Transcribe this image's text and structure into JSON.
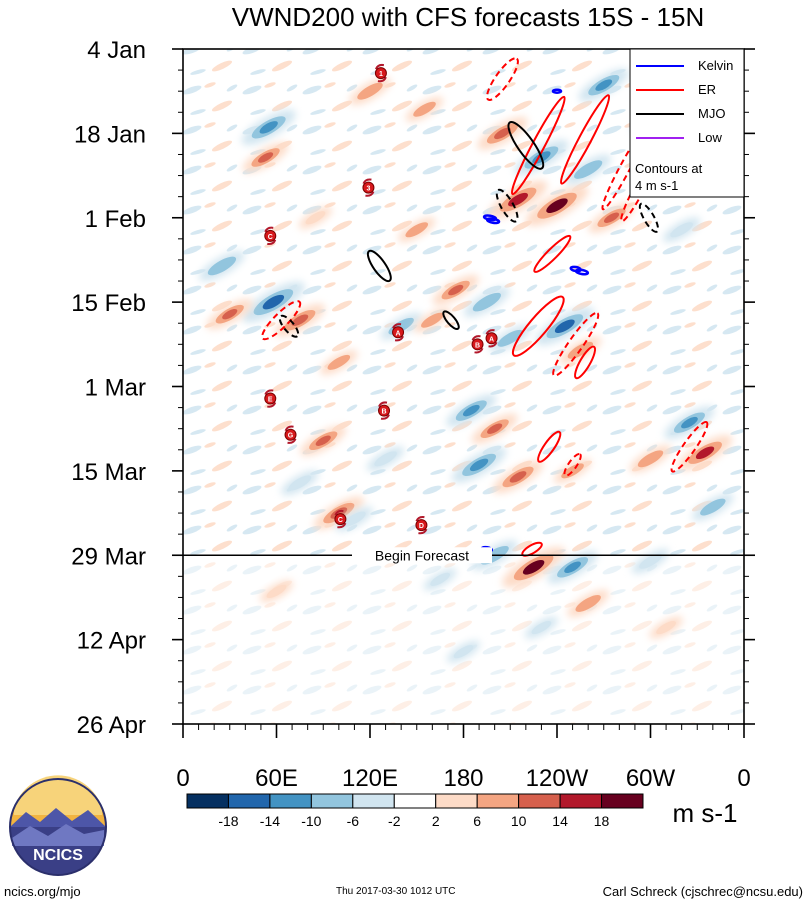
{
  "chart_data": {
    "type": "heatmap",
    "title": "VWND200 with CFS forecasts  15S - 15N",
    "xlabel": "",
    "ylabel": "",
    "x_ticks": [
      "0",
      "60E",
      "120E",
      "180",
      "120W",
      "60W",
      "0"
    ],
    "x_range_deg": [
      0,
      360
    ],
    "y_ticks": [
      "4 Jan",
      "18 Jan",
      "1 Feb",
      "15 Feb",
      "1 Mar",
      "15 Mar",
      "29 Mar",
      "12 Apr",
      "26 Apr"
    ],
    "y_range_days": [
      0,
      112
    ],
    "forecast_line_day": 84,
    "forecast_label": "Begin Forecast",
    "colorbar": {
      "unit": "m s-1",
      "labels": [
        "-18",
        "-14",
        "-10",
        "-6",
        "-2",
        "2",
        "6",
        "10",
        "14",
        "18"
      ],
      "colors": [
        "#053061",
        "#2166ac",
        "#4393c3",
        "#92c5de",
        "#d1e5f0",
        "#ffffff",
        "#fddbc7",
        "#f4a582",
        "#d6604d",
        "#b2182b",
        "#67001f"
      ]
    },
    "legend": {
      "position": "top-right",
      "entries": [
        {
          "name": "Kelvin",
          "color": "#0000ff"
        },
        {
          "name": "ER",
          "color": "#ff0000"
        },
        {
          "name": "MJO",
          "color": "#000000"
        },
        {
          "name": "Low",
          "color": "#a020f0"
        }
      ],
      "note_line1": "Contours at",
      "note_line2": "4 m s-1"
    },
    "anomalies": [
      {
        "lon": 120,
        "day": 7,
        "v": 8
      },
      {
        "lon": 55,
        "day": 13,
        "v": -14
      },
      {
        "lon": 53,
        "day": 18,
        "v": 10
      },
      {
        "lon": 155,
        "day": 10,
        "v": 6
      },
      {
        "lon": 205,
        "day": 14,
        "v": 12
      },
      {
        "lon": 215,
        "day": 25,
        "v": 16
      },
      {
        "lon": 240,
        "day": 26,
        "v": 18
      },
      {
        "lon": 230,
        "day": 18,
        "v": -14
      },
      {
        "lon": 270,
        "day": 6,
        "v": -12
      },
      {
        "lon": 260,
        "day": 20,
        "v": -10
      },
      {
        "lon": 275,
        "day": 28,
        "v": 10
      },
      {
        "lon": 300,
        "day": 12,
        "v": -6
      },
      {
        "lon": 25,
        "day": 36,
        "v": -10
      },
      {
        "lon": 58,
        "day": 42,
        "v": -18
      },
      {
        "lon": 75,
        "day": 45,
        "v": 12
      },
      {
        "lon": 30,
        "day": 44,
        "v": 10
      },
      {
        "lon": 100,
        "day": 52,
        "v": 6
      },
      {
        "lon": 140,
        "day": 46,
        "v": -8
      },
      {
        "lon": 160,
        "day": 45,
        "v": 6
      },
      {
        "lon": 175,
        "day": 40,
        "v": 10
      },
      {
        "lon": 195,
        "day": 42,
        "v": -10
      },
      {
        "lon": 210,
        "day": 48,
        "v": -8
      },
      {
        "lon": 245,
        "day": 46,
        "v": -16
      },
      {
        "lon": 255,
        "day": 50,
        "v": 8
      },
      {
        "lon": 185,
        "day": 60,
        "v": -12
      },
      {
        "lon": 200,
        "day": 63,
        "v": 10
      },
      {
        "lon": 90,
        "day": 65,
        "v": 10
      },
      {
        "lon": 75,
        "day": 72,
        "v": -6
      },
      {
        "lon": 130,
        "day": 68,
        "v": -6
      },
      {
        "lon": 325,
        "day": 62,
        "v": -12
      },
      {
        "lon": 335,
        "day": 67,
        "v": 14
      },
      {
        "lon": 300,
        "day": 68,
        "v": 8
      },
      {
        "lon": 190,
        "day": 69,
        "v": -14
      },
      {
        "lon": 215,
        "day": 71,
        "v": 12
      },
      {
        "lon": 250,
        "day": 70,
        "v": 6
      },
      {
        "lon": 340,
        "day": 76,
        "v": -8
      },
      {
        "lon": 100,
        "day": 77,
        "v": 12
      },
      {
        "lon": 110,
        "day": 78,
        "v": -6
      },
      {
        "lon": 200,
        "day": 84,
        "v": -10
      },
      {
        "lon": 225,
        "day": 86,
        "v": 18
      },
      {
        "lon": 250,
        "day": 86,
        "v": -12
      },
      {
        "lon": 300,
        "day": 85,
        "v": -6
      },
      {
        "lon": 260,
        "day": 92,
        "v": 8
      },
      {
        "lon": 165,
        "day": 88,
        "v": -4
      },
      {
        "lon": 60,
        "day": 90,
        "v": 4
      },
      {
        "lon": 230,
        "day": 96,
        "v": -4
      },
      {
        "lon": 180,
        "day": 100,
        "v": -4
      },
      {
        "lon": 310,
        "day": 96,
        "v": 4
      },
      {
        "lon": 150,
        "day": 30,
        "v": 6
      },
      {
        "lon": 85,
        "day": 28,
        "v": 4
      },
      {
        "lon": 320,
        "day": 30,
        "v": -6
      }
    ],
    "contours": [
      {
        "wave": "ER",
        "sign": "+",
        "lon": 228,
        "day": 16,
        "ang": -62,
        "rx": 55,
        "ry": 6
      },
      {
        "wave": "ER",
        "sign": "+",
        "lon": 258,
        "day": 15,
        "ang": -62,
        "rx": 50,
        "ry": 6
      },
      {
        "wave": "ER",
        "sign": "-",
        "lon": 283,
        "day": 20,
        "ang": -62,
        "rx": 45,
        "ry": 5
      },
      {
        "wave": "ER",
        "sign": "-",
        "lon": 293,
        "day": 23,
        "ang": -62,
        "rx": 38,
        "ry": 5
      },
      {
        "wave": "ER",
        "sign": "-",
        "lon": 205,
        "day": 5,
        "ang": -55,
        "rx": 25,
        "ry": 7
      },
      {
        "wave": "ER",
        "sign": "+",
        "lon": 237,
        "day": 34,
        "ang": -45,
        "rx": 25,
        "ry": 5
      },
      {
        "wave": "ER",
        "sign": "+",
        "lon": 228,
        "day": 46,
        "ang": -50,
        "rx": 38,
        "ry": 9
      },
      {
        "wave": "ER",
        "sign": "-",
        "lon": 252,
        "day": 49,
        "ang": -55,
        "rx": 38,
        "ry": 7
      },
      {
        "wave": "ER",
        "sign": "+",
        "lon": 258,
        "day": 52,
        "ang": -60,
        "rx": 18,
        "ry": 5
      },
      {
        "wave": "ER",
        "sign": "-",
        "lon": 63,
        "day": 45,
        "ang": -45,
        "rx": 26,
        "ry": 7
      },
      {
        "wave": "ER",
        "sign": "+",
        "lon": 235,
        "day": 66,
        "ang": -55,
        "rx": 18,
        "ry": 5
      },
      {
        "wave": "ER",
        "sign": "-",
        "lon": 250,
        "day": 69,
        "ang": -55,
        "rx": 13,
        "ry": 4
      },
      {
        "wave": "ER",
        "sign": "-",
        "lon": 325,
        "day": 66,
        "ang": -55,
        "rx": 30,
        "ry": 6
      },
      {
        "wave": "ER",
        "sign": "+",
        "lon": 224,
        "day": 83,
        "ang": -30,
        "rx": 11,
        "ry": 4
      },
      {
        "wave": "MJO",
        "sign": "+",
        "lon": 220,
        "day": 16,
        "ang": 55,
        "rx": 28,
        "ry": 8
      },
      {
        "wave": "MJO",
        "sign": "-",
        "lon": 208,
        "day": 26,
        "ang": 60,
        "rx": 18,
        "ry": 6
      },
      {
        "wave": "MJO",
        "sign": "-",
        "lon": 299,
        "day": 28,
        "ang": 60,
        "rx": 16,
        "ry": 5
      },
      {
        "wave": "MJO",
        "sign": "+",
        "lon": 126,
        "day": 36,
        "ang": 55,
        "rx": 18,
        "ry": 6
      },
      {
        "wave": "MJO",
        "sign": "-",
        "lon": 68,
        "day": 46,
        "ang": 50,
        "rx": 13,
        "ry": 5
      },
      {
        "wave": "MJO",
        "sign": "+",
        "lon": 172,
        "day": 45,
        "ang": 50,
        "rx": 11,
        "ry": 4
      },
      {
        "wave": "Kelvin",
        "sign": "+",
        "lon": 197,
        "day": 28,
        "ang": 10,
        "rx": 6,
        "ry": 2
      },
      {
        "wave": "Kelvin",
        "sign": "+",
        "lon": 199,
        "day": 28.5,
        "ang": 10,
        "rx": 6,
        "ry": 2
      },
      {
        "wave": "Kelvin",
        "sign": "+",
        "lon": 256,
        "day": 37,
        "ang": 10,
        "rx": 6,
        "ry": 2
      },
      {
        "wave": "Kelvin",
        "sign": "+",
        "lon": 252,
        "day": 36.5,
        "ang": 10,
        "rx": 5,
        "ry": 2
      },
      {
        "wave": "Kelvin",
        "sign": "+",
        "lon": 195,
        "day": 83,
        "ang": 10,
        "rx": 5,
        "ry": 2
      },
      {
        "wave": "Kelvin",
        "sign": "+",
        "lon": 240,
        "day": 7,
        "ang": 0,
        "rx": 4,
        "ry": 1.5
      }
    ],
    "storm_markers": [
      {
        "label": "1",
        "lon": 127,
        "day": 4
      },
      {
        "label": "3",
        "lon": 119,
        "day": 23
      },
      {
        "label": "C",
        "lon": 56,
        "day": 31
      },
      {
        "label": "A",
        "lon": 138,
        "day": 47
      },
      {
        "label": "B",
        "lon": 189,
        "day": 49
      },
      {
        "label": "A",
        "lon": 198,
        "day": 48
      },
      {
        "label": "E",
        "lon": 56,
        "day": 58
      },
      {
        "label": "B",
        "lon": 129,
        "day": 60
      },
      {
        "label": "G",
        "lon": 69,
        "day": 64
      },
      {
        "label": "C",
        "lon": 101,
        "day": 78
      },
      {
        "label": "D",
        "lon": 153,
        "day": 79
      }
    ]
  },
  "footer": {
    "left": "ncics.org/mjo",
    "middle": "Thu 2017-03-30 1012 UTC",
    "right": "Carl Schreck (cjschrec@ncsu.edu)"
  },
  "logo": {
    "text": "NCICS"
  }
}
